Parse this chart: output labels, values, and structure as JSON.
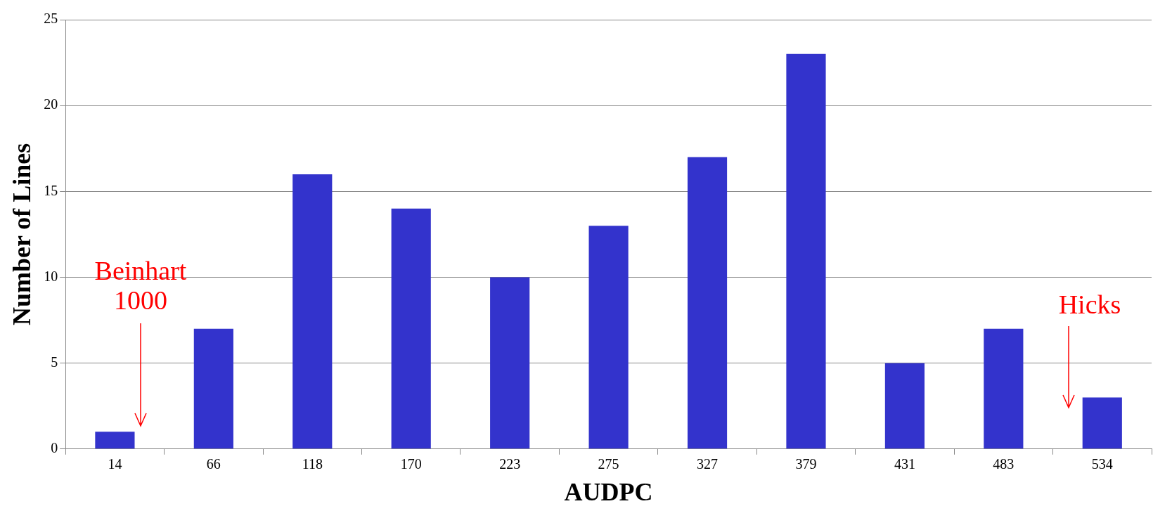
{
  "chart_data": {
    "type": "bar",
    "xlabel": "AUDPC",
    "ylabel": "Number of Lines",
    "categories": [
      "14",
      "66",
      "118",
      "170",
      "223",
      "275",
      "327",
      "379",
      "431",
      "483",
      "534"
    ],
    "values": [
      1,
      7,
      16,
      14,
      10,
      13,
      17,
      23,
      5,
      7,
      3
    ],
    "color": "#3333cc",
    "ylim": [
      0,
      25
    ],
    "yticks": [
      0,
      5,
      10,
      15,
      20,
      25
    ],
    "grid": "y",
    "legend": false,
    "annotations": [
      "Beinhart 1000",
      "Hicks"
    ]
  }
}
